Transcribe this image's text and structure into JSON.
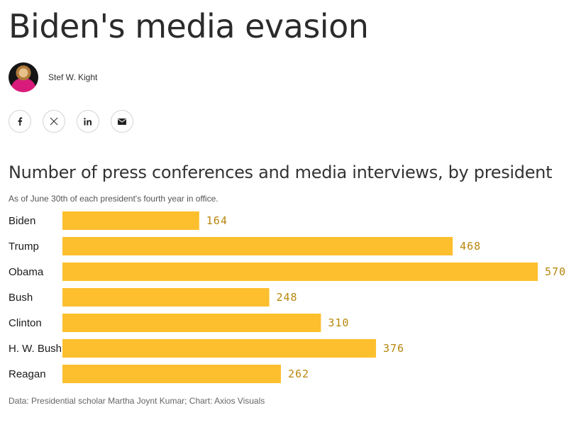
{
  "headline": "Biden's media evasion",
  "author": {
    "name": "Stef W. Kight"
  },
  "share": [
    {
      "icon": "facebook-icon"
    },
    {
      "icon": "x-icon"
    },
    {
      "icon": "linkedin-icon"
    },
    {
      "icon": "email-icon"
    }
  ],
  "colors": {
    "bar": "#FDBF2D",
    "value_label": "#B8860B"
  },
  "chart_data": {
    "type": "bar",
    "orientation": "horizontal",
    "title": "Number of press conferences and media interviews, by president",
    "subtitle": "As of June 30th of each president's fourth year in office.",
    "categories": [
      "Biden",
      "Trump",
      "Obama",
      "Bush",
      "Clinton",
      "H. W. Bush",
      "Reagan"
    ],
    "values": [
      164,
      468,
      570,
      248,
      310,
      376,
      262
    ],
    "xlabel": "",
    "ylabel": "",
    "xlim": [
      0,
      570
    ],
    "source": "Data: Presidential scholar Martha Joynt Kumar; Chart: Axios Visuals"
  }
}
